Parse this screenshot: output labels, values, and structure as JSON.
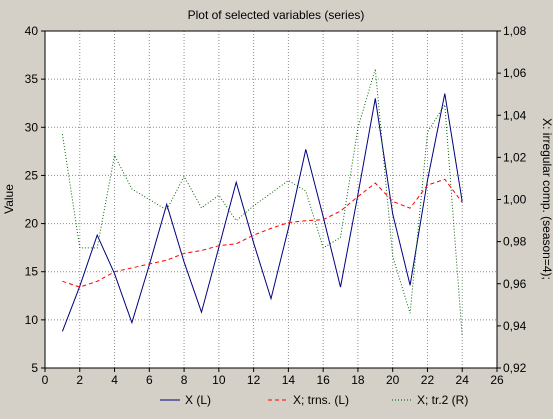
{
  "chart_data": {
    "type": "line",
    "title": "Plot of selected variables (series)",
    "ylabel_left": "Value",
    "ylabel_right": "X: irregular comp. (season=4);",
    "x": [
      1,
      2,
      3,
      4,
      5,
      6,
      7,
      8,
      9,
      10,
      11,
      12,
      13,
      14,
      15,
      16,
      17,
      18,
      19,
      20,
      21,
      22,
      23,
      24
    ],
    "xlim": [
      0,
      26
    ],
    "ylim_left": [
      5,
      40
    ],
    "ylim_right": [
      0.92,
      1.08
    ],
    "x_ticks": [
      "0",
      "2",
      "4",
      "6",
      "8",
      "10",
      "12",
      "14",
      "16",
      "18",
      "20",
      "22",
      "24",
      "26"
    ],
    "y_ticks_left": [
      "5",
      "10",
      "15",
      "20",
      "25",
      "30",
      "35",
      "40"
    ],
    "y_ticks_right": [
      "0,92",
      "0,94",
      "0,96",
      "0,98",
      "1,00",
      "1,02",
      "1,04",
      "1,06",
      "1,08"
    ],
    "grid": true,
    "legend_position": "bottom",
    "series": [
      {
        "name": "X (L)",
        "axis": "left",
        "color": "#000080",
        "style": "solid",
        "values": [
          8.8,
          13.5,
          18.8,
          14.8,
          9.7,
          15.7,
          22.0,
          16.0,
          10.8,
          17.5,
          24.3,
          18.0,
          12.2,
          19.5,
          27.7,
          20.7,
          13.4,
          23.0,
          33.0,
          21.0,
          13.6,
          24.5,
          33.5,
          22.3
        ]
      },
      {
        "name": "X; trns. (L)",
        "axis": "left",
        "color": "#ff0000",
        "style": "dashed",
        "values": [
          14.0,
          13.4,
          14.0,
          15.0,
          15.4,
          15.8,
          16.2,
          16.9,
          17.2,
          17.7,
          17.9,
          18.8,
          19.5,
          20.1,
          20.3,
          20.4,
          21.3,
          22.8,
          24.2,
          22.3,
          21.6,
          24.0,
          24.6,
          22.2
        ]
      },
      {
        "name": "X; tr.2 (R)",
        "axis": "right",
        "color": "#006400",
        "style": "dotted",
        "values": [
          1.031,
          0.977,
          0.977,
          1.021,
          1.005,
          1.0,
          0.995,
          1.011,
          0.996,
          1.002,
          0.99,
          0.997,
          1.003,
          1.009,
          1.004,
          0.977,
          0.982,
          1.034,
          1.062,
          0.973,
          0.946,
          1.032,
          1.045,
          0.935
        ]
      }
    ]
  }
}
